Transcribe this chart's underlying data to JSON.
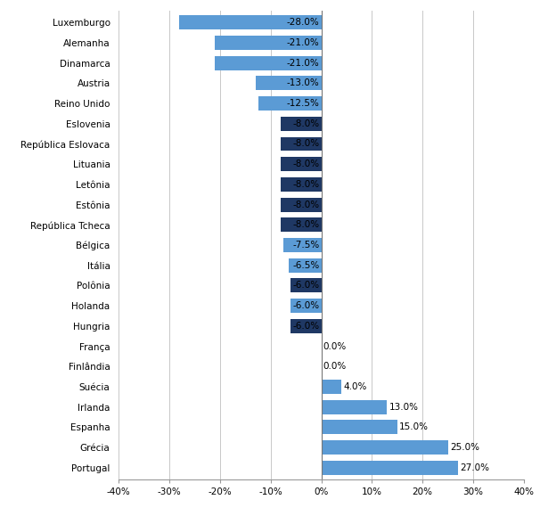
{
  "categories": [
    "Portugal",
    "Grécia",
    "Espanha",
    "Irlanda",
    "Suécia",
    "Finlândia",
    "França",
    "Hungria",
    "Holanda",
    "Polônia",
    "Itália",
    "Bélgica",
    "República Tcheca",
    "Estônia",
    "Letônia",
    "Lituania",
    "República Eslovaca",
    "Eslovenia",
    "Reino Unido",
    "Austria",
    "Dinamarca",
    "Alemanha",
    "Luxemburgo"
  ],
  "values": [
    27.0,
    25.0,
    15.0,
    13.0,
    4.0,
    0.0,
    0.0,
    -6.0,
    -6.0,
    -6.0,
    -6.5,
    -7.5,
    -8.0,
    -8.0,
    -8.0,
    -8.0,
    -8.0,
    -8.0,
    -12.5,
    -13.0,
    -21.0,
    -21.0,
    -28.0
  ],
  "bar_colors": [
    "#5b9bd5",
    "#5b9bd5",
    "#5b9bd5",
    "#5b9bd5",
    "#5b9bd5",
    "#5b9bd5",
    "#5b9bd5",
    "#1f3864",
    "#5b9bd5",
    "#1f3864",
    "#5b9bd5",
    "#5b9bd5",
    "#1f3864",
    "#1f3864",
    "#1f3864",
    "#1f3864",
    "#1f3864",
    "#1f3864",
    "#5b9bd5",
    "#5b9bd5",
    "#5b9bd5",
    "#5b9bd5",
    "#5b9bd5"
  ],
  "xlim": [
    -40,
    40
  ],
  "xticks": [
    -40,
    -30,
    -20,
    -10,
    0,
    10,
    20,
    30,
    40
  ],
  "xtick_labels": [
    "-40%",
    "-30%",
    "-20%",
    "-10%",
    "0%",
    "10%",
    "20%",
    "30%",
    "40%"
  ],
  "label_fontsize": 7.5,
  "tick_fontsize": 7.5,
  "bar_height": 0.7,
  "background_color": "#ffffff",
  "grid_color": "#c8c8c8"
}
